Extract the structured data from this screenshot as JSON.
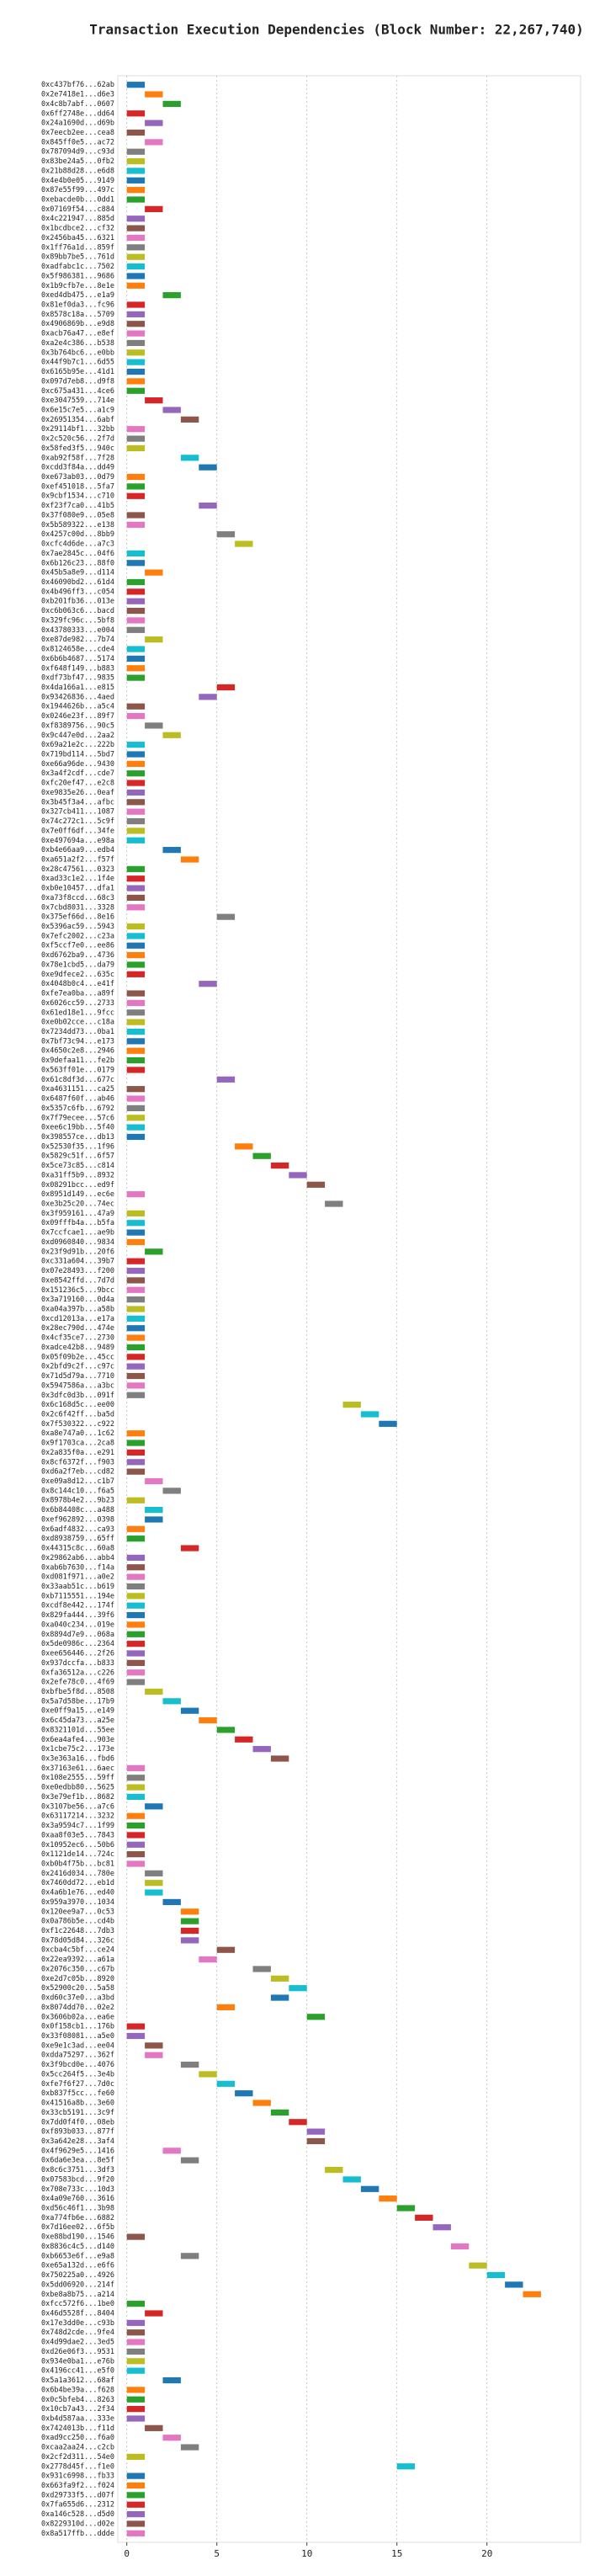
{
  "chart_data": {
    "type": "gantt",
    "title": "Transaction Execution Dependencies (Block Number: 22,267,740)",
    "categories": [
      "0xc437bf76...62ab",
      "0x2e7418e1...d6e3",
      "0x4c8b7abf...0607",
      "0x6ff2748e...dd64",
      "0x24a1690d...d69b",
      "0x7eecb2ee...cea8",
      "0x845ff0e5...ac72",
      "0x787094d9...c93d",
      "0x83be24a5...0fb2",
      "0x21b88d28...e6d8",
      "0x4e4b0e05...9149",
      "0x87e55f99...497c",
      "0xebacde0b...0dd1",
      "0x07169f54...c884",
      "0x4c221947...885d",
      "0x1bcdbce2...cf32",
      "0x2456ba45...6321",
      "0x1ff76a1d...859f",
      "0x89bb7be5...761d",
      "0xadfabc1c...7502",
      "0x5f986381...9686",
      "0x1b9cfb7e...8e1e",
      "0xed4db475...e1a9",
      "0x81ef0da3...fc96",
      "0x8578c18a...5709",
      "0x4906869b...e9d8",
      "0xacb76a47...e8ef",
      "0xa2e4c386...b538",
      "0x3b764bc6...e0bb",
      "0x44f9b7c1...6d55",
      "0x6165b95e...41d1",
      "0x097d7eb8...d9f8",
      "0xc675a431...4ce6",
      "0xe3047559...714e",
      "0x6e15c7e5...a1c9",
      "0x26951354...6abf",
      "0x29114bf1...32bb",
      "0x2c520c56...2f7d",
      "0x58fed3f5...940c",
      "0xab92f58f...7f28",
      "0xcdd3f84a...dd49",
      "0xe673ab03...0d79",
      "0xef451018...5fa7",
      "0x9cbf1534...c710",
      "0xf23f7ca0...41b5",
      "0x37f080e9...05e8",
      "0x5b589322...e138",
      "0x4257c00d...8bb9",
      "0xcfc4d6de...a7c3",
      "0x7ae2845c...04f6",
      "0x6b126c23...88f0",
      "0x45b5a8e9...d114",
      "0x46090bd2...61d4",
      "0x4b496ff3...c054",
      "0xb201fb36...013e",
      "0xc6b063c6...bacd",
      "0x329fc96c...5bf8",
      "0x43780333...e004",
      "0xe87de982...7b74",
      "0x8124658e...cde4",
      "0x6b6b4687...5174",
      "0xf648f149...b883",
      "0xdf73bf47...9835",
      "0x4da166a1...e815",
      "0x93426836...4aed",
      "0x1944626b...a5c4",
      "0x0246e23f...89f7",
      "0xf8389756...90c5",
      "0x9c447e0d...2aa2",
      "0x69a21e2c...222b",
      "0x719bd114...5bd7",
      "0xe66a96de...9430",
      "0x3a4f2cdf...cde7",
      "0xfc20ef47...e2c8",
      "0xe9835e26...0eaf",
      "0x3b45f3a4...afbc",
      "0x327cb411...1087",
      "0x74c272c1...5c9f",
      "0x7e0ff6df...34fe",
      "0xe497694a...e98a",
      "0xb4e66aa9...edb4",
      "0xa651a2f2...f57f",
      "0x28c47561...0323",
      "0xad33c1e2...1f4e",
      "0xb0e10457...dfa1",
      "0xa73f8ccd...68c3",
      "0x7cbd8031...3328",
      "0x375ef66d...8e16",
      "0x5396ac59...5943",
      "0x7efc2002...c23a",
      "0xf5ccf7e0...ee86",
      "0xd6762ba9...4736",
      "0x78e1cbd5...da79",
      "0xe9dfece2...635c",
      "0x4048b0c4...e41f",
      "0xfe7ea0ba...a89f",
      "0x6026cc59...2733",
      "0x61ed18e1...9fcc",
      "0xe0b02cce...c18a",
      "0x7234dd73...0ba1",
      "0x7bf73c94...e173",
      "0x4650c2e8...2946",
      "0x9defaa11...fe2b",
      "0x563ff01e...0179",
      "0x61c8df3d...677c",
      "0xa4631151...ca25",
      "0x6487f60f...ab46",
      "0x5357c6fb...6792",
      "0x7f79ecee...57c6",
      "0xee6c19bb...5f40",
      "0x398557ce...db13",
      "0x52530f35...1f96",
      "0x5829c51f...6f57",
      "0x5ce73c85...c814",
      "0xa31ff5b9...8932",
      "0x08291bcc...ed9f",
      "0x8951d149...ec6e",
      "0xe3b25c20...74ec",
      "0x3f959161...47a9",
      "0x09fffb4a...b5fa",
      "0x7ccfcae1...ae9b",
      "0xd0960840...9834",
      "0x23f9d91b...20f6",
      "0xc331a604...39b7",
      "0x07e28493...f200",
      "0xe8542ffd...7d7d",
      "0x151236c5...9bcc",
      "0x3a719160...0d4a",
      "0xa04a397b...a58b",
      "0xcd12013a...e17a",
      "0x28ec790d...474e",
      "0x4cf35ce7...2730",
      "0xadce42b8...9489",
      "0x05f09b2e...45cc",
      "0x2bfd9c2f...c97c",
      "0x71d5d79a...7710",
      "0x5947586a...a3bc",
      "0x3dfc0d3b...091f",
      "0x6c168d5c...ee00",
      "0x2c6f42ff...ba5d",
      "0x7f530322...c922",
      "0xa8e747a0...1c62",
      "0x9f1703ca...2ca8",
      "0x2a835f0a...e291",
      "0x8cf6372f...f903",
      "0xd6a2f7eb...cd82",
      "0xe09a8d12...c1b7",
      "0x8c144c10...f6a5",
      "0x8978b4e2...9b23",
      "0x6b84408c...a488",
      "0xef962892...0398",
      "0x6adf4832...ca93",
      "0xd8938759...65ff",
      "0x44315c8c...60a8",
      "0x29862ab6...abb4",
      "0xab6b7630...f14a",
      "0xd081f971...a0e2",
      "0x33aab51c...b619",
      "0xb7115551...194e",
      "0xcdf8e442...174f",
      "0x829fa444...39f6",
      "0xa040c234...019e",
      "0x8894d7e9...068a",
      "0x5de0986c...2364",
      "0xee656446...2f26",
      "0x937dccfa...b833",
      "0xfa36512a...c226",
      "0x2efe78c0...4f69",
      "0xbfbe5f8d...8508",
      "0x5a7d58be...17b9",
      "0xe0ff9a15...e149",
      "0x6c45da73...a25e",
      "0x8321101d...55ee",
      "0x6ea4afe4...903e",
      "0x1cbe75c2...173e",
      "0x3e363a16...fbd6",
      "0x37163e61...6aec",
      "0x108e2555...59ff",
      "0xe0edbb80...5625",
      "0x3e79ef1b...8682",
      "0x3107be56...a7c6",
      "0x63117214...3232",
      "0x3a9594c7...1f99",
      "0xaa8f03e5...7843",
      "0x10952ec6...50b6",
      "0x1121de14...724c",
      "0xb0b4f75b...bc81",
      "0x2416d034...780e",
      "0x7460dd72...eb1d",
      "0x4a6b1e76...ed40",
      "0x959a3970...1034",
      "0x120ee9a7...0c53",
      "0x0a786b5e...cd4b",
      "0xf1c22648...7db3",
      "0x78d05d84...326c",
      "0xcba4c5bf...ce24",
      "0x22ea9392...a61a",
      "0x2076c350...c67b",
      "0xe2d7c05b...8920",
      "0x52900c20...5a58",
      "0xd60c37e0...a3bd",
      "0x8074dd70...02e2",
      "0x3606b02a...ea6e",
      "0x0f158cb1...176b",
      "0x33f08081...a5e0",
      "0xe9e1c3ad...ee04",
      "0xdda75297...362f",
      "0x3f9bcd0e...4076",
      "0x5cc264f5...3e4b",
      "0xfe7f6f27...7d0c",
      "0xb837f5cc...fe60",
      "0x41516a8b...3e60",
      "0x33cb5191...3c9f",
      "0x7dd0f4f0...08eb",
      "0xf893b033...877f",
      "0x3a642e28...3af4",
      "0x4f9629e5...1416",
      "0x6da6e3ea...8e5f",
      "0x8c6c3751...3df3",
      "0x07583bcd...9f20",
      "0x708e733c...10d3",
      "0x4a09e760...3616",
      "0xd56c46f1...3b98",
      "0xa774fb6e...6882",
      "0x7d16ee02...6f5b",
      "0xe88bd190...1546",
      "0x8836c4c5...d140",
      "0xb6653e6f...e9a8",
      "0xe65a132d...e6f6",
      "0x750225a0...4926",
      "0x5dd06920...214f",
      "0xbe8a8b75...a214",
      "0xfcc572f6...1be0",
      "0x46d5528f...8404",
      "0x17e3dd0e...c93b",
      "0x748d2cde...9fe4",
      "0x4d99dae2...3ed5",
      "0xd26e06f3...9531",
      "0x934e0ba1...e76b",
      "0x4196cc41...e5f0",
      "0x5a1a3612...68af",
      "0x6b4be39a...f628",
      "0x0c5bfeb4...8263",
      "0x10cb7a43...2f34",
      "0xb4d587aa...333e",
      "0x7424013b...f11d",
      "0xad9cc250...f6a0",
      "0xcaa2aa24...c2cb",
      "0x2cf2d311...54e0",
      "0x2778d45f...f1e0",
      "0x931c6998...fb33",
      "0x663fa9f2...f024",
      "0xd29733f5...d07f",
      "0x7fa655d6...2312",
      "0xa146c528...d5d0",
      "0x8229310d...d02e",
      "0x8a517ffb...ddde"
    ],
    "values": [
      0,
      1,
      2,
      0,
      1,
      0,
      1,
      0,
      0,
      0,
      0,
      0,
      0,
      1,
      0,
      0,
      0,
      0,
      0,
      0,
      0,
      0,
      2,
      0,
      0,
      0,
      0,
      0,
      0,
      0,
      0,
      0,
      0,
      1,
      2,
      3,
      0,
      0,
      0,
      3,
      4,
      0,
      0,
      0,
      4,
      0,
      0,
      5,
      6,
      0,
      0,
      1,
      0,
      0,
      0,
      0,
      0,
      0,
      1,
      0,
      0,
      0,
      0,
      5,
      4,
      0,
      0,
      1,
      2,
      0,
      0,
      0,
      0,
      0,
      0,
      0,
      0,
      0,
      0,
      0,
      2,
      3,
      0,
      0,
      0,
      0,
      0,
      5,
      0,
      0,
      0,
      0,
      0,
      0,
      4,
      0,
      0,
      0,
      0,
      0,
      0,
      0,
      0,
      0,
      5,
      0,
      0,
      0,
      0,
      0,
      0,
      6,
      7,
      8,
      9,
      10,
      0,
      11,
      0,
      0,
      0,
      0,
      1,
      0,
      0,
      0,
      0,
      0,
      0,
      0,
      0,
      0,
      0,
      0,
      0,
      0,
      0,
      0,
      12,
      13,
      14,
      0,
      0,
      0,
      0,
      0,
      1,
      2,
      0,
      1,
      1,
      0,
      0,
      3,
      0,
      0,
      0,
      0,
      0,
      0,
      0,
      0,
      0,
      0,
      0,
      0,
      0,
      0,
      1,
      2,
      3,
      4,
      5,
      6,
      7,
      8,
      0,
      0,
      0,
      0,
      1,
      0,
      0,
      0,
      0,
      0,
      0,
      1,
      1,
      1,
      2,
      3,
      3,
      3,
      3,
      5,
      4,
      7,
      8,
      9,
      8,
      5,
      10,
      0,
      0,
      1,
      1,
      3,
      4,
      5,
      6,
      7,
      8,
      9,
      10,
      10,
      2,
      3,
      11,
      12,
      13,
      14,
      15,
      16,
      17,
      0,
      18,
      3,
      19,
      20,
      21,
      22,
      0,
      1,
      0,
      0,
      0,
      0,
      0,
      0,
      2,
      0,
      0,
      0,
      0,
      1,
      2,
      3,
      0,
      15,
      0,
      0,
      0,
      0,
      0,
      0,
      0
    ],
    "duration": 1,
    "palette": [
      "#1f77b4",
      "#ff7f0e",
      "#2ca02c",
      "#d62728",
      "#9467bd",
      "#8c564b",
      "#e377c2",
      "#7f7f7f",
      "#bcbd22",
      "#17becf"
    ],
    "xlim": [
      -0.5,
      25.2
    ],
    "xticks": [
      0,
      5,
      10,
      15,
      20
    ],
    "grid": true
  }
}
